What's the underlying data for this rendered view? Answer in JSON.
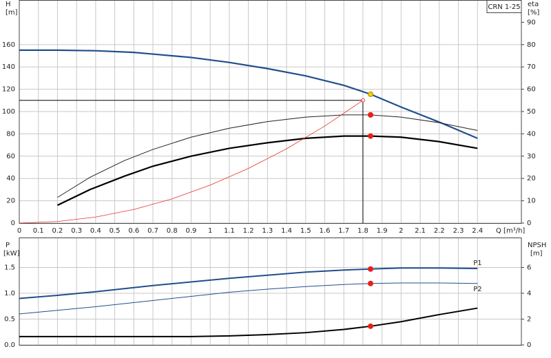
{
  "chart_data": [
    {
      "type": "line",
      "legend_text": "CRN 1-25",
      "ylabel": "H",
      "yunit": "[m]",
      "y2label": "eta",
      "y2unit": "[%]",
      "xlabel": "Q [m³/h]",
      "xlim": [
        0,
        2.63
      ],
      "xticks": [
        0,
        0.1,
        0.2,
        0.3,
        0.4,
        0.5,
        0.6,
        0.7,
        0.8,
        0.9,
        1,
        1.1,
        1.2,
        1.3,
        1.4,
        1.5,
        1.6,
        1.7,
        1.8,
        1.9,
        2,
        2.1,
        2.2,
        2.3,
        2.4
      ],
      "ylim": [
        0,
        200
      ],
      "yticks": [
        0,
        20,
        40,
        60,
        80,
        100,
        120,
        140,
        160
      ],
      "y2lim": [
        0,
        100
      ],
      "y2ticks": [
        0,
        10,
        20,
        30,
        40,
        50,
        60,
        70,
        80,
        90
      ],
      "grid": true,
      "series": [
        {
          "color": "#1f4e8c",
          "width": 2.2,
          "axis": "y",
          "x": [
            0,
            0.2,
            0.4,
            0.6,
            0.7,
            0.9,
            1.1,
            1.3,
            1.5,
            1.7,
            1.84,
            2.0,
            2.2,
            2.4
          ],
          "values": [
            155,
            155,
            154.5,
            153,
            151.5,
            148.5,
            144,
            138.5,
            132,
            123.5,
            115.5,
            104,
            90.5,
            76
          ]
        },
        {
          "color": "#222222",
          "width": 1,
          "axis": "y2",
          "x": [
            0.2,
            0.37,
            0.55,
            0.7,
            0.9,
            1.1,
            1.3,
            1.5,
            1.7,
            1.84,
            2.0,
            2.2,
            2.4
          ],
          "values": [
            11.5,
            20.5,
            28,
            33,
            38.5,
            42.5,
            45.5,
            47.5,
            48.5,
            48.5,
            47.5,
            45,
            41.5
          ]
        },
        {
          "color": "#000000",
          "width": 2.2,
          "axis": "y2",
          "x": [
            0.2,
            0.37,
            0.55,
            0.7,
            0.9,
            1.1,
            1.3,
            1.5,
            1.7,
            1.84,
            2.0,
            2.2,
            2.4
          ],
          "values": [
            8,
            15,
            21,
            25.5,
            30,
            33.5,
            36,
            38,
            39,
            39,
            38.5,
            36.5,
            33.5
          ]
        },
        {
          "color": "#e8332a",
          "width": 0.8,
          "axis": "y",
          "x": [
            0,
            0.2,
            0.4,
            0.6,
            0.8,
            1.0,
            1.2,
            1.4,
            1.6,
            1.8
          ],
          "values": [
            0,
            1.4,
            5.4,
            12.2,
            21.7,
            34,
            49,
            66.6,
            87,
            110
          ]
        }
      ],
      "duty": {
        "x": 1.8,
        "y": 110
      },
      "markers": [
        {
          "x": 1.84,
          "y": 115.5,
          "axis": "y",
          "color": "#f5d000"
        },
        {
          "x": 1.84,
          "y": 48.5,
          "axis": "y2",
          "color": "#e8201a"
        },
        {
          "x": 1.84,
          "y": 39,
          "axis": "y2",
          "color": "#e8201a"
        }
      ]
    },
    {
      "type": "line",
      "ylabel": "P",
      "yunit": "[kW]",
      "y2label": "NPSH",
      "y2unit": "[m]",
      "xlim": [
        0,
        2.63
      ],
      "ylim": [
        0,
        2.08
      ],
      "yticks": [
        {
          "value": 0,
          "label": "0.0"
        },
        0.5,
        {
          "value": 1,
          "label": "1.0"
        },
        1.5
      ],
      "y2lim": [
        0,
        8.32
      ],
      "y2ticks": [
        0,
        2,
        4,
        6
      ],
      "grid": true,
      "series": [
        {
          "name": "P1",
          "color": "#1f4e8c",
          "width": 2,
          "axis": "y",
          "x": [
            0,
            0.2,
            0.4,
            0.7,
            0.9,
            1.1,
            1.3,
            1.5,
            1.7,
            1.84,
            2.0,
            2.2,
            2.4
          ],
          "values": [
            0.9,
            0.96,
            1.03,
            1.15,
            1.22,
            1.29,
            1.35,
            1.41,
            1.45,
            1.47,
            1.49,
            1.49,
            1.48
          ]
        },
        {
          "name": "P2",
          "color": "#1f4e8c",
          "width": 1,
          "axis": "y",
          "x": [
            0,
            0.2,
            0.4,
            0.7,
            0.9,
            1.1,
            1.3,
            1.5,
            1.7,
            1.84,
            2.0,
            2.2,
            2.4
          ],
          "values": [
            0.6,
            0.67,
            0.74,
            0.86,
            0.94,
            1.02,
            1.08,
            1.13,
            1.17,
            1.19,
            1.2,
            1.2,
            1.19
          ]
        },
        {
          "color": "#000000",
          "width": 2,
          "axis": "y2",
          "x": [
            0,
            0.7,
            0.9,
            1.1,
            1.3,
            1.5,
            1.7,
            1.84,
            2.0,
            2.2,
            2.4
          ],
          "values": [
            0.65,
            0.65,
            0.65,
            0.7,
            0.8,
            0.95,
            1.2,
            1.45,
            1.8,
            2.35,
            2.85
          ]
        }
      ],
      "markers": [
        {
          "x": 1.84,
          "y": 1.47,
          "axis": "y",
          "color": "#e8201a"
        },
        {
          "x": 1.84,
          "y": 1.19,
          "axis": "y",
          "color": "#e8201a"
        },
        {
          "x": 1.84,
          "y": 1.45,
          "axis": "y2",
          "color": "#e8201a"
        }
      ]
    }
  ]
}
